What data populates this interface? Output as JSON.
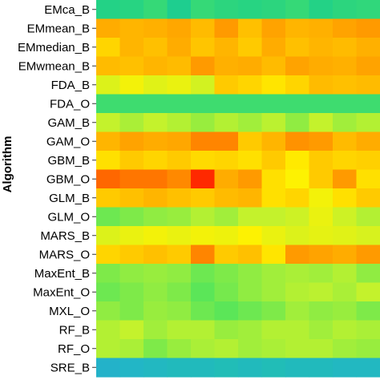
{
  "chart_data": {
    "type": "heatmap",
    "ylabel": "Algorithm",
    "rows": [
      "EMca_B",
      "EMmean_B",
      "EMmedian_B",
      "EMwmean_B",
      "FDA_B",
      "FDA_O",
      "GAM_B",
      "GAM_O",
      "GBM_B",
      "GBM_O",
      "GLM_B",
      "GLM_O",
      "MARS_B",
      "MARS_O",
      "MaxEnt_B",
      "MaxEnt_O",
      "MXL_O",
      "RF_B",
      "RF_O",
      "SRE_B"
    ],
    "colorscale": [
      "#3b5fd8",
      "#22b5c8",
      "#1ed08a",
      "#57e65a",
      "#c4f22c",
      "#fff200",
      "#ffb000",
      "#ff7a00",
      "#ff1a00"
    ],
    "values": [
      [
        0.26,
        0.27,
        0.3,
        0.24,
        0.3,
        0.28,
        0.27,
        0.28,
        0.3,
        0.26,
        0.28,
        0.29
      ],
      [
        0.76,
        0.74,
        0.75,
        0.77,
        0.73,
        0.8,
        0.72,
        0.78,
        0.74,
        0.75,
        0.78,
        0.8
      ],
      [
        0.68,
        0.74,
        0.72,
        0.76,
        0.71,
        0.74,
        0.7,
        0.76,
        0.72,
        0.74,
        0.73,
        0.75
      ],
      [
        0.73,
        0.72,
        0.74,
        0.73,
        0.8,
        0.75,
        0.76,
        0.73,
        0.78,
        0.76,
        0.75,
        0.78
      ],
      [
        0.55,
        0.6,
        0.56,
        0.58,
        0.53,
        0.7,
        0.68,
        0.65,
        0.68,
        0.73,
        0.72,
        0.73
      ],
      [
        0.32,
        0.32,
        0.32,
        0.32,
        0.32,
        0.32,
        0.32,
        0.32,
        0.32,
        0.32,
        0.32,
        0.32
      ],
      [
        0.5,
        0.47,
        0.5,
        0.48,
        0.45,
        0.48,
        0.46,
        0.49,
        0.44,
        0.5,
        0.46,
        0.48
      ],
      [
        0.74,
        0.78,
        0.76,
        0.77,
        0.85,
        0.85,
        0.7,
        0.74,
        0.82,
        0.8,
        0.73,
        0.76
      ],
      [
        0.66,
        0.7,
        0.68,
        0.7,
        0.67,
        0.68,
        0.66,
        0.7,
        0.64,
        0.7,
        0.68,
        0.69
      ],
      [
        0.9,
        0.88,
        0.88,
        0.84,
        0.98,
        0.76,
        0.8,
        0.66,
        0.62,
        0.7,
        0.8,
        0.66
      ],
      [
        0.7,
        0.72,
        0.74,
        0.72,
        0.7,
        0.73,
        0.74,
        0.66,
        0.68,
        0.6,
        0.66,
        0.7
      ],
      [
        0.4,
        0.42,
        0.44,
        0.45,
        0.48,
        0.46,
        0.5,
        0.5,
        0.52,
        0.58,
        0.52,
        0.48
      ],
      [
        0.55,
        0.58,
        0.6,
        0.58,
        0.6,
        0.59,
        0.62,
        0.58,
        0.55,
        0.57,
        0.56,
        0.54
      ],
      [
        0.68,
        0.7,
        0.72,
        0.7,
        0.85,
        0.7,
        0.72,
        0.65,
        0.8,
        0.78,
        0.76,
        0.8
      ],
      [
        0.42,
        0.44,
        0.45,
        0.44,
        0.4,
        0.42,
        0.44,
        0.46,
        0.47,
        0.46,
        0.48,
        0.44
      ],
      [
        0.4,
        0.42,
        0.44,
        0.42,
        0.38,
        0.41,
        0.44,
        0.46,
        0.48,
        0.49,
        0.47,
        0.5
      ],
      [
        0.44,
        0.42,
        0.45,
        0.44,
        0.4,
        0.38,
        0.4,
        0.42,
        0.46,
        0.44,
        0.45,
        0.42
      ],
      [
        0.48,
        0.5,
        0.46,
        0.48,
        0.48,
        0.45,
        0.46,
        0.48,
        0.48,
        0.46,
        0.48,
        0.47
      ],
      [
        0.48,
        0.47,
        0.42,
        0.45,
        0.47,
        0.48,
        0.46,
        0.47,
        0.48,
        0.48,
        0.46,
        0.45
      ],
      [
        0.12,
        0.13,
        0.14,
        0.15,
        0.15,
        0.16,
        0.15,
        0.16,
        0.15,
        0.15,
        0.14,
        0.14
      ]
    ]
  }
}
